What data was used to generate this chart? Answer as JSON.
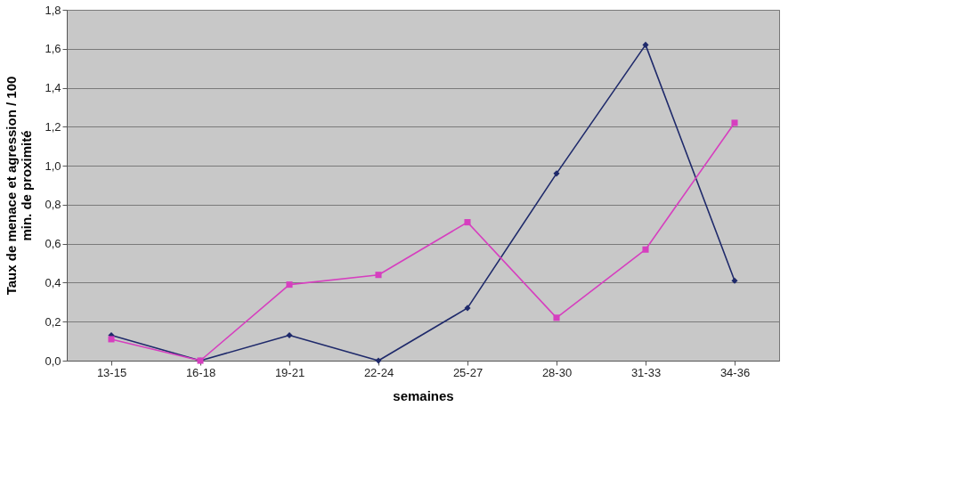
{
  "chart_data": {
    "type": "line",
    "xlabel": "semaines",
    "ylabel": "Taux de menace et agression / 100\nmin. de proximité",
    "categories": [
      "13-15",
      "16-18",
      "19-21",
      "22-24",
      "25-27",
      "28-30",
      "31-33",
      "34-36"
    ],
    "series": [
      {
        "color": "#1f2a6b",
        "marker": "diamond",
        "values": [
          0.13,
          0,
          0.13,
          0,
          0.27,
          0.96,
          1.62,
          0.41
        ]
      },
      {
        "color": "#d63fbf",
        "marker": "square",
        "values": [
          0.11,
          0,
          0.39,
          0.44,
          0.71,
          0.22,
          0.57,
          1.22
        ]
      }
    ],
    "ylim": [
      0,
      1.8
    ],
    "yticks": [
      {
        "value": 0,
        "label": "0,0"
      },
      {
        "value": 0.2,
        "label": "0,2"
      },
      {
        "value": 0.4,
        "label": "0,4"
      },
      {
        "value": 0.6,
        "label": "0,6"
      },
      {
        "value": 0.8,
        "label": "0,8"
      },
      {
        "value": 1.0,
        "label": "1,0"
      },
      {
        "value": 1.2,
        "label": "1,2"
      },
      {
        "value": 1.4,
        "label": "1,4"
      },
      {
        "value": 1.6,
        "label": "1,6"
      },
      {
        "value": 1.8,
        "label": "1,8"
      }
    ],
    "grid": "y",
    "legend": false,
    "line_style": "solid"
  }
}
